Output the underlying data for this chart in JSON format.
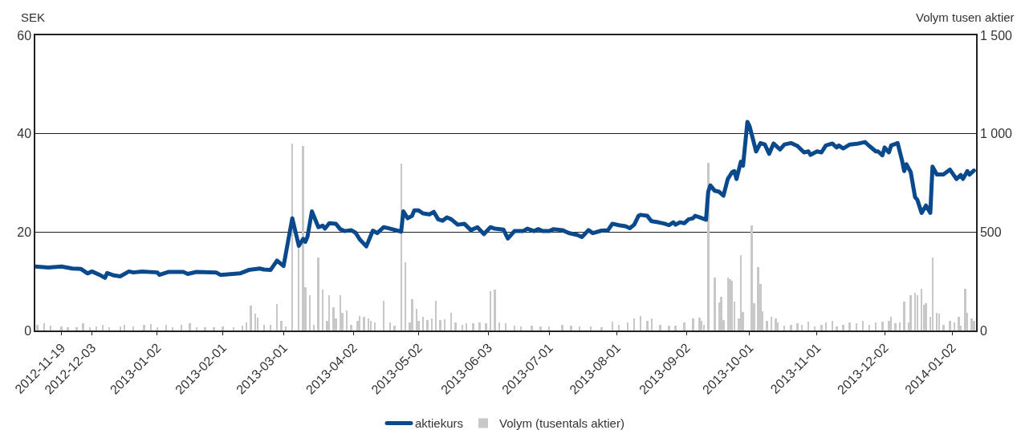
{
  "chart_data": {
    "type": "line",
    "ylabel": "SEK",
    "y2label": "Volym tusen aktier",
    "xlim": [
      "2012-11-07",
      "2014-01-13"
    ],
    "xticks": [
      {
        "value": "2012-11-19",
        "label": "2012-11-19"
      },
      {
        "value": "2012-12-03",
        "label": "2012-12-03"
      },
      {
        "value": "2013-01-02",
        "label": "2013-01-02"
      },
      {
        "value": "2013-02-01",
        "label": "2013-02-01"
      },
      {
        "value": "2013-03-01",
        "label": "2013-03-01"
      },
      {
        "value": "2013-04-02",
        "label": "2013-04-02"
      },
      {
        "value": "2013-05-02",
        "label": "2013-05-02"
      },
      {
        "value": "2013-06-03",
        "label": "2013-06-03"
      },
      {
        "value": "2013-07-01",
        "label": "2013-07-01"
      },
      {
        "value": "2013-08-01",
        "label": "2013-08-01"
      },
      {
        "value": "2013-09-02",
        "label": "2013-09-02"
      },
      {
        "value": "2013-10-01",
        "label": "2013-10-01"
      },
      {
        "value": "2013-11-01",
        "label": "2013-11-01"
      },
      {
        "value": "2013-12-02",
        "label": "2013-12-02"
      },
      {
        "value": "2014-01-02",
        "label": "2014-01-02"
      }
    ],
    "ylim": [
      0,
      60
    ],
    "yticks": [
      0,
      20,
      40,
      60
    ],
    "y2lim": [
      0,
      1500
    ],
    "y2ticks": [
      0,
      500,
      {
        "value": 1000,
        "label": "1 000"
      },
      {
        "value": 1500,
        "label": "1 500"
      }
    ],
    "grid": "y",
    "legend": "bottom",
    "marker": "none",
    "line_style": "solid",
    "series": [
      {
        "name": "aktiekurs",
        "color": "#0a4a8c",
        "x": [
          "2012-11-07",
          "2012-11-13",
          "2012-11-19",
          "2012-11-24",
          "2012-11-28",
          "2012-12-01",
          "2012-12-03",
          "2012-12-07",
          "2012-12-09",
          "2012-12-10",
          "2012-12-13",
          "2012-12-16",
          "2012-12-20",
          "2012-12-22",
          "2012-12-26",
          "2013-01-02",
          "2013-01-03",
          "2013-01-07",
          "2013-01-14",
          "2013-01-16",
          "2013-01-20",
          "2013-01-29",
          "2013-01-31",
          "2013-02-09",
          "2013-02-13",
          "2013-02-18",
          "2013-02-20",
          "2013-02-23",
          "2013-02-26",
          "2013-03-01",
          "2013-03-05",
          "2013-03-08",
          "2013-03-10",
          "2013-03-11",
          "2013-03-12",
          "2013-03-14",
          "2013-03-17",
          "2013-03-19",
          "2013-03-20",
          "2013-03-22",
          "2013-03-25",
          "2013-03-27",
          "2013-03-29",
          "2013-04-01",
          "2013-04-03",
          "2013-04-05",
          "2013-04-08",
          "2013-04-11",
          "2013-04-13",
          "2013-04-16",
          "2013-04-18",
          "2013-04-24",
          "2013-04-25",
          "2013-04-27",
          "2013-04-29",
          "2013-04-30",
          "2013-05-02",
          "2013-05-04",
          "2013-05-07",
          "2013-05-09",
          "2013-05-11",
          "2013-05-13",
          "2013-05-15",
          "2013-05-17",
          "2013-05-20",
          "2013-05-23",
          "2013-05-26",
          "2013-05-29",
          "2013-06-01",
          "2013-06-04",
          "2013-06-06",
          "2013-06-10",
          "2013-06-12",
          "2013-06-15",
          "2013-06-19",
          "2013-06-21",
          "2013-06-24",
          "2013-06-26",
          "2013-06-28",
          "2013-07-01",
          "2013-07-03",
          "2013-07-07",
          "2013-07-10",
          "2013-07-14",
          "2013-07-16",
          "2013-07-19",
          "2013-07-21",
          "2013-07-25",
          "2013-07-28",
          "2013-07-30",
          "2013-08-02",
          "2013-08-05",
          "2013-08-07",
          "2013-08-09",
          "2013-08-11",
          "2013-08-12",
          "2013-08-15",
          "2013-08-17",
          "2013-08-20",
          "2013-08-23",
          "2013-08-25",
          "2013-08-27",
          "2013-08-28",
          "2013-08-30",
          "2013-09-01",
          "2013-09-03",
          "2013-09-05",
          "2013-09-06",
          "2013-09-08",
          "2013-09-11",
          "2013-09-12",
          "2013-09-13",
          "2013-09-15",
          "2013-09-17",
          "2013-09-19",
          "2013-09-21",
          "2013-09-23",
          "2013-09-24",
          "2013-09-25",
          "2013-09-27",
          "2013-09-28",
          "2013-09-30",
          "2013-10-01",
          "2013-10-04",
          "2013-10-06",
          "2013-10-08",
          "2013-10-10",
          "2013-10-12",
          "2013-10-15",
          "2013-10-17",
          "2013-10-20",
          "2013-10-23",
          "2013-10-26",
          "2013-10-28",
          "2013-10-29",
          "2013-11-01",
          "2013-11-03",
          "2013-11-05",
          "2013-11-08",
          "2013-11-10",
          "2013-11-11",
          "2013-11-13",
          "2013-11-16",
          "2013-11-20",
          "2013-11-23",
          "2013-11-25",
          "2013-11-28",
          "2013-11-29",
          "2013-12-01",
          "2013-12-02",
          "2013-12-04",
          "2013-12-05",
          "2013-12-08",
          "2013-12-10",
          "2013-12-11",
          "2013-12-12",
          "2013-12-14",
          "2013-12-16",
          "2013-12-17",
          "2013-12-19",
          "2013-12-21",
          "2013-12-23",
          "2013-12-24",
          "2013-12-26",
          "2013-12-29",
          "2014-01-01",
          "2014-01-04",
          "2014-01-06",
          "2014-01-07",
          "2014-01-09",
          "2014-01-10",
          "2014-01-12"
        ],
        "values": [
          13.0,
          12.8,
          13.0,
          12.6,
          12.5,
          11.6,
          12.0,
          11.2,
          10.7,
          11.7,
          11.2,
          11.0,
          12.0,
          11.8,
          12.0,
          11.8,
          11.3,
          11.9,
          11.9,
          11.5,
          11.9,
          11.8,
          11.3,
          11.6,
          12.3,
          12.6,
          12.4,
          12.3,
          14.2,
          13.1,
          22.8,
          17.2,
          18.6,
          18.0,
          19.1,
          24.2,
          21.0,
          21.3,
          20.7,
          21.8,
          21.7,
          20.6,
          20.2,
          20.4,
          19.9,
          18.5,
          17.1,
          20.3,
          19.8,
          21.0,
          20.8,
          20.1,
          24.2,
          22.8,
          23.3,
          24.4,
          24.4,
          23.8,
          23.6,
          24.1,
          22.6,
          22.3,
          23.0,
          22.6,
          21.5,
          21.7,
          20.4,
          21.0,
          19.6,
          21.0,
          20.7,
          20.5,
          18.7,
          20.2,
          20.2,
          20.7,
          20.2,
          20.6,
          20.2,
          20.2,
          20.6,
          20.4,
          19.8,
          19.4,
          19.0,
          20.4,
          19.8,
          20.3,
          20.4,
          21.7,
          21.4,
          21.2,
          20.8,
          21.5,
          23.3,
          23.5,
          23.3,
          22.2,
          22.0,
          21.7,
          21.4,
          22.0,
          21.5,
          22.0,
          21.8,
          22.6,
          22.8,
          23.3,
          23.0,
          22.5,
          28.2,
          29.5,
          28.4,
          28.2,
          27.4,
          30.8,
          32.2,
          32.4,
          30.8,
          34.3,
          33.5,
          42.4,
          41.5,
          36.4,
          38.1,
          37.8,
          35.9,
          38.0,
          36.8,
          37.8,
          38.1,
          37.5,
          36.2,
          36.4,
          35.7,
          36.4,
          36.2,
          37.6,
          38.0,
          37.2,
          37.6,
          37.0,
          37.8,
          38.0,
          38.3,
          37.5,
          36.4,
          36.4,
          35.6,
          37.2,
          36.2,
          37.6,
          38.1,
          34.6,
          32.4,
          33.8,
          32.2,
          27.1,
          26.6,
          23.9,
          25.4,
          23.9,
          33.3,
          31.7,
          31.7,
          32.7,
          30.8,
          31.6,
          30.8,
          32.4,
          31.7,
          32.5
        ]
      },
      {
        "name": "Volym (tusentals aktier)",
        "type": "bar",
        "axis": "y2",
        "color": "#c8c8c8",
        "x": [
          "2012-11-08",
          "2012-11-11",
          "2012-11-14",
          "2012-11-19",
          "2012-11-22",
          "2012-11-26",
          "2012-11-29",
          "2012-12-02",
          "2012-12-05",
          "2012-12-08",
          "2012-12-11",
          "2012-12-16",
          "2012-12-18",
          "2012-12-22",
          "2012-12-27",
          "2012-12-30",
          "2013-01-02",
          "2013-01-06",
          "2013-01-09",
          "2013-01-13",
          "2013-01-17",
          "2013-01-20",
          "2013-01-24",
          "2013-01-28",
          "2013-02-01",
          "2013-02-06",
          "2013-02-10",
          "2013-02-12",
          "2013-02-14",
          "2013-02-16",
          "2013-02-17",
          "2013-02-20",
          "2013-02-23",
          "2013-02-26",
          "2013-02-28",
          "2013-03-02",
          "2013-03-05",
          "2013-03-08",
          "2013-03-10",
          "2013-03-11",
          "2013-03-13",
          "2013-03-15",
          "2013-03-17",
          "2013-03-19",
          "2013-03-21",
          "2013-03-22",
          "2013-03-24",
          "2013-03-25",
          "2013-03-27",
          "2013-03-28",
          "2013-03-30",
          "2013-04-01",
          "2013-04-04",
          "2013-04-05",
          "2013-04-07",
          "2013-04-09",
          "2013-04-10",
          "2013-04-12",
          "2013-04-16",
          "2013-04-19",
          "2013-04-21",
          "2013-04-24",
          "2013-04-26",
          "2013-04-28",
          "2013-04-29",
          "2013-05-01",
          "2013-05-02",
          "2013-05-04",
          "2013-05-06",
          "2013-05-08",
          "2013-05-10",
          "2013-05-12",
          "2013-05-14",
          "2013-05-17",
          "2013-05-19",
          "2013-05-22",
          "2013-05-24",
          "2013-05-27",
          "2013-05-30",
          "2013-06-02",
          "2013-06-04",
          "2013-06-06",
          "2013-06-08",
          "2013-06-11",
          "2013-06-15",
          "2013-06-18",
          "2013-06-23",
          "2013-06-27",
          "2013-07-01",
          "2013-07-07",
          "2013-07-11",
          "2013-07-15",
          "2013-07-20",
          "2013-07-25",
          "2013-07-30",
          "2013-08-02",
          "2013-08-06",
          "2013-08-09",
          "2013-08-12",
          "2013-08-15",
          "2013-08-17",
          "2013-08-21",
          "2013-08-25",
          "2013-08-28",
          "2013-09-01",
          "2013-09-05",
          "2013-09-08",
          "2013-09-09",
          "2013-09-10",
          "2013-09-12",
          "2013-09-15",
          "2013-09-17",
          "2013-09-18",
          "2013-09-19",
          "2013-09-21",
          "2013-09-22",
          "2013-09-23",
          "2013-09-24",
          "2013-09-26",
          "2013-09-27",
          "2013-09-28",
          "2013-10-02",
          "2013-10-03",
          "2013-10-05",
          "2013-10-06",
          "2013-10-07",
          "2013-10-09",
          "2013-10-11",
          "2013-10-13",
          "2013-10-14",
          "2013-10-17",
          "2013-10-20",
          "2013-10-23",
          "2013-10-25",
          "2013-10-28",
          "2013-10-31",
          "2013-11-03",
          "2013-11-05",
          "2013-11-08",
          "2013-11-10",
          "2013-11-13",
          "2013-11-16",
          "2013-11-19",
          "2013-11-22",
          "2013-11-25",
          "2013-11-28",
          "2013-12-01",
          "2013-12-04",
          "2013-12-05",
          "2013-12-07",
          "2013-12-09",
          "2013-12-11",
          "2013-12-13",
          "2013-12-14",
          "2013-12-16",
          "2013-12-17",
          "2013-12-19",
          "2013-12-20",
          "2013-12-21",
          "2013-12-23",
          "2013-12-24",
          "2013-12-26",
          "2013-12-27",
          "2013-12-29",
          "2014-01-01",
          "2014-01-03",
          "2014-01-05",
          "2014-01-06",
          "2014-01-08",
          "2014-01-09",
          "2014-01-11",
          "2014-01-12"
        ],
        "values": [
          30,
          35,
          25,
          20,
          15,
          18,
          35,
          15,
          20,
          30,
          15,
          20,
          30,
          22,
          28,
          32,
          18,
          30,
          15,
          30,
          35,
          15,
          15,
          15,
          20,
          18,
          25,
          40,
          127,
          84,
          64,
          30,
          30,
          135,
          50,
          20,
          951,
          418,
          939,
          219,
          179,
          30,
          370,
          207,
          50,
          179,
          120,
          60,
          179,
          90,
          100,
          30,
          50,
          75,
          70,
          60,
          50,
          40,
          150,
          40,
          25,
          848,
          346,
          40,
          160,
          110,
          50,
          70,
          55,
          60,
          150,
          55,
          57,
          90,
          40,
          30,
          35,
          35,
          40,
          35,
          199,
          207,
          40,
          35,
          25,
          20,
          25,
          20,
          20,
          30,
          25,
          20,
          20,
          15,
          45,
          30,
          40,
          60,
          72,
          50,
          60,
          30,
          25,
          25,
          40,
          60,
          65,
          50,
          30,
          852,
          271,
          143,
          171,
          55,
          271,
          259,
          251,
          147,
          60,
          382,
          92,
          533,
          139,
          322,
          235,
          96,
          50,
          70,
          60,
          40,
          25,
          30,
          35,
          30,
          45,
          20,
          30,
          40,
          50,
          20,
          30,
          40,
          35,
          50,
          30,
          40,
          45,
          50,
          70,
          35,
          40,
          147,
          40,
          180,
          191,
          179,
          211,
          131,
          139,
          70,
          370,
          90,
          85,
          30,
          50,
          40,
          70,
          25,
          211,
          88,
          60,
          50
        ]
      }
    ]
  }
}
